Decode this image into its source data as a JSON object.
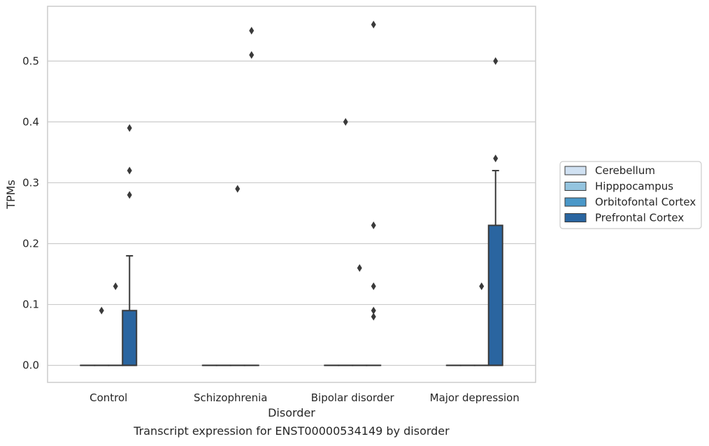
{
  "chart_data": {
    "type": "box",
    "title": "",
    "caption": "Transcript expression for ENST00000534149 by disorder",
    "xlabel": "Disorder",
    "ylabel": "TPMs",
    "ylim": [
      -0.028,
      0.59
    ],
    "yticks": [
      0.0,
      0.1,
      0.2,
      0.3,
      0.4,
      0.5
    ],
    "ytick_labels": [
      "0.0",
      "0.1",
      "0.2",
      "0.3",
      "0.4",
      "0.5"
    ],
    "grid": "horizontal",
    "legend_position": "right",
    "categories": [
      "Control",
      "Schizophrenia",
      "Bipolar disorder",
      "Major depression"
    ],
    "series": [
      {
        "name": "Cerebellum",
        "color": "#d0e1f2",
        "boxes": [
          {
            "q1": 0,
            "median": 0,
            "q3": 0,
            "whisker_low": 0,
            "whisker_high": 0,
            "outliers": []
          },
          {
            "q1": 0,
            "median": 0,
            "q3": 0,
            "whisker_low": 0,
            "whisker_high": 0,
            "outliers": []
          },
          {
            "q1": 0,
            "median": 0,
            "q3": 0,
            "whisker_low": 0,
            "whisker_high": 0,
            "outliers": []
          },
          {
            "q1": 0,
            "median": 0,
            "q3": 0,
            "whisker_low": 0,
            "whisker_high": 0,
            "outliers": []
          }
        ]
      },
      {
        "name": "Hipppocampus",
        "color": "#94c4df",
        "boxes": [
          {
            "q1": 0,
            "median": 0,
            "q3": 0,
            "whisker_low": 0,
            "whisker_high": 0,
            "outliers": [
              0.09
            ]
          },
          {
            "q1": 0,
            "median": 0,
            "q3": 0,
            "whisker_low": 0,
            "whisker_high": 0,
            "outliers": []
          },
          {
            "q1": 0,
            "median": 0,
            "q3": 0,
            "whisker_low": 0,
            "whisker_high": 0,
            "outliers": [
              0.4
            ]
          },
          {
            "q1": 0,
            "median": 0,
            "q3": 0,
            "whisker_low": 0,
            "whisker_high": 0,
            "outliers": []
          }
        ]
      },
      {
        "name": "Orbitofontal Cortex",
        "color": "#4a98c9",
        "boxes": [
          {
            "q1": 0,
            "median": 0,
            "q3": 0,
            "whisker_low": 0,
            "whisker_high": 0,
            "outliers": [
              0.13
            ]
          },
          {
            "q1": 0,
            "median": 0,
            "q3": 0,
            "whisker_low": 0,
            "whisker_high": 0,
            "outliers": [
              0.29
            ]
          },
          {
            "q1": 0,
            "median": 0,
            "q3": 0,
            "whisker_low": 0,
            "whisker_high": 0,
            "outliers": [
              0.16
            ]
          },
          {
            "q1": 0,
            "median": 0,
            "q3": 0,
            "whisker_low": 0,
            "whisker_high": 0,
            "outliers": [
              0.13
            ]
          }
        ]
      },
      {
        "name": "Prefrontal Cortex",
        "color": "#2a65a0",
        "boxes": [
          {
            "q1": 0,
            "median": 0,
            "q3": 0.09,
            "whisker_low": 0,
            "whisker_high": 0.18,
            "outliers": [
              0.28,
              0.32,
              0.39
            ]
          },
          {
            "q1": 0,
            "median": 0,
            "q3": 0,
            "whisker_low": 0,
            "whisker_high": 0,
            "outliers": [
              0.51,
              0.55
            ]
          },
          {
            "q1": 0,
            "median": 0,
            "q3": 0,
            "whisker_low": 0,
            "whisker_high": 0,
            "outliers": [
              0.08,
              0.09,
              0.13,
              0.23,
              0.56
            ]
          },
          {
            "q1": 0,
            "median": 0,
            "q3": 0.23,
            "whisker_low": 0,
            "whisker_high": 0.32,
            "outliers": [
              0.34,
              0.5
            ]
          }
        ]
      }
    ]
  }
}
